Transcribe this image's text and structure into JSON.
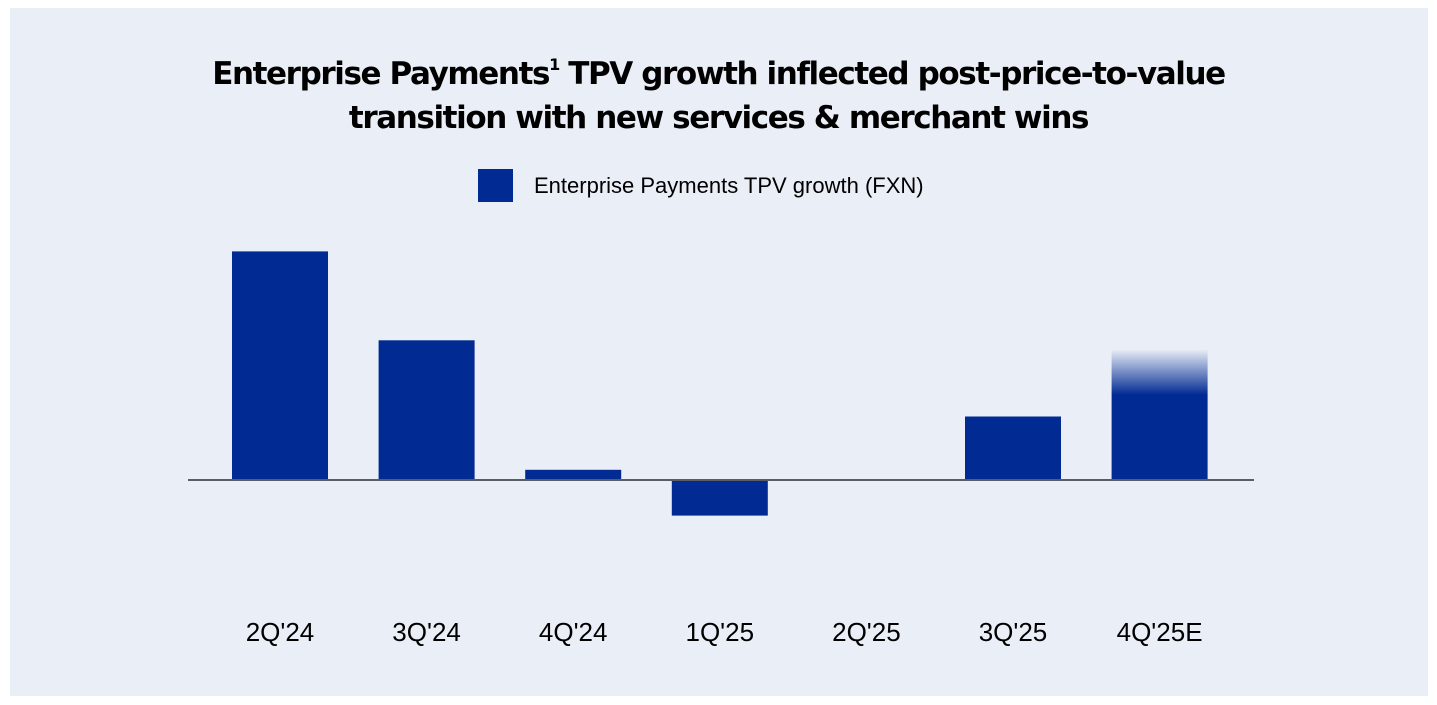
{
  "colors": {
    "bar": "#012b93",
    "axis": "#5a5d66",
    "panel_bg": "#eaeef6"
  },
  "chart_data": {
    "type": "bar",
    "title_main": "Enterprise Payments",
    "title_footnote": "1",
    "title_rest_line1": " TPV growth inflected post-price-to-value",
    "title_line2": "transition with new services & merchant wins",
    "legend": [
      "Enterprise Payments TPV growth (FXN)"
    ],
    "categories": [
      "2Q'24",
      "3Q'24",
      "4Q'24",
      "1Q'25",
      "2Q'25",
      "3Q'25",
      "4Q'25E"
    ],
    "series": [
      {
        "name": "Enterprise Payments TPV growth (FXN)",
        "values": [
          18,
          11,
          0.8,
          -2.8,
          0,
          5,
          10.3
        ],
        "estimate": [
          false,
          false,
          false,
          false,
          false,
          false,
          true
        ]
      }
    ],
    "xlabel": "",
    "ylabel": "",
    "ylim": [
      -8,
      20
    ],
    "grid": false
  }
}
